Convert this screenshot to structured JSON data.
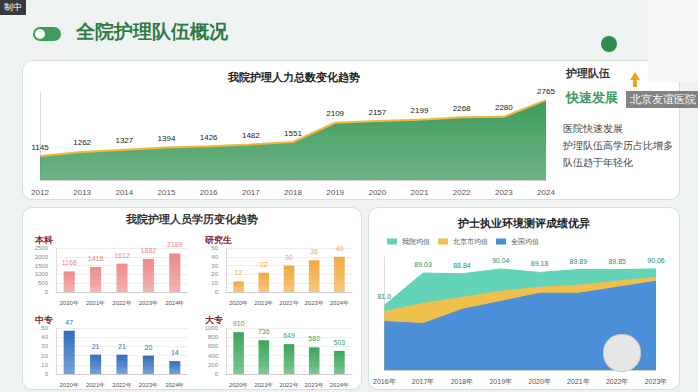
{
  "slide": {
    "title": "全院护理队伍概况",
    "recording": "制中",
    "speaker": "北京友谊医院",
    "section_title": "我院护理人员学历变化趋势",
    "highlight": {
      "heading": "护理队伍",
      "emphasis": "快速发展",
      "points": [
        "医院快速发展",
        "护理队伍高学历占比增多",
        "队伍趋于年轻化"
      ]
    }
  },
  "chart_data": [
    {
      "type": "area",
      "title": "我院护理人力总数变化趋势",
      "categories": [
        "2012",
        "2013",
        "2014",
        "2015",
        "2016",
        "2017",
        "2018",
        "2019",
        "2020",
        "2021",
        "2022",
        "2023",
        "2024"
      ],
      "values": [
        1145,
        1262,
        1327,
        1394,
        1426,
        1482,
        1551,
        2109,
        2157,
        2199,
        2268,
        2280,
        2765
      ],
      "color": "#3d9b5c",
      "ylim": [
        450,
        3000
      ],
      "data_labels": true,
      "tick_labels": "x",
      "grid": false
    },
    {
      "type": "bar",
      "title": "本科",
      "categories": [
        "2020年",
        "2021年",
        "2022年",
        "2023年",
        "2024年"
      ],
      "values": [
        1168,
        1418,
        1612,
        1882,
        2189
      ],
      "color": "#ee8a8a",
      "ylim": [
        0,
        2500
      ],
      "yticks": [
        0,
        500,
        1000,
        1500,
        2000,
        2500
      ],
      "data_labels": true,
      "grid": true
    },
    {
      "type": "bar",
      "title": "研究生",
      "categories": [
        "2020年",
        "2021年",
        "2022年",
        "2023年",
        "2024年"
      ],
      "values": [
        12,
        22,
        30,
        36,
        40
      ],
      "color": "#f2a93b",
      "ylim": [
        0,
        50
      ],
      "yticks": [
        0,
        10,
        20,
        30,
        40,
        50
      ],
      "data_labels": true,
      "grid": true
    },
    {
      "type": "bar",
      "title": "中专",
      "categories": [
        "2020年",
        "2021年",
        "2022年",
        "2023年",
        "2024年"
      ],
      "values": [
        47,
        21,
        21,
        20,
        14
      ],
      "color": "#2f6fbf",
      "ylim": [
        0,
        50
      ],
      "yticks": [
        0,
        10,
        20,
        30,
        40,
        50
      ],
      "data_labels": true,
      "grid": true
    },
    {
      "type": "bar",
      "title": "大专",
      "categories": [
        "2020年",
        "2021年",
        "2022年",
        "2023年",
        "2024年"
      ],
      "values": [
        910,
        736,
        649,
        580,
        503
      ],
      "color": "#3aa65a",
      "ylim": [
        0,
        1000
      ],
      "yticks": [
        0,
        200,
        400,
        600,
        800,
        1000
      ],
      "data_labels": true,
      "grid": true
    },
    {
      "type": "area",
      "title": "护士执业环境测评成绩优异",
      "categories": [
        "2016年",
        "2017年",
        "2018年",
        "2019年",
        "2020年",
        "2021年",
        "2022年",
        "2023年"
      ],
      "series": [
        {
          "name": "我院均值",
          "color": "#62d3b6",
          "data_labels": true,
          "values": [
            81.0,
            89.03,
            88.84,
            90.04,
            89.18,
            89.89,
            89.85,
            90.06
          ],
          "value_labels": [
            "81.0",
            "89.03",
            "88.84",
            "90.04",
            "89.18",
            "89.89",
            "89.85",
            "90.06"
          ]
        },
        {
          "name": "北京市均值",
          "color": "#efc04c",
          "values": [
            79.5,
            81.5,
            83.0,
            84.5,
            85.5,
            86.0,
            87.0,
            88.0
          ]
        },
        {
          "name": "全国均值",
          "color": "#4a8fd8",
          "values": [
            77.0,
            76.5,
            80.0,
            82.0,
            84.0,
            84.0,
            85.5,
            87.0
          ]
        }
      ],
      "ylim": [
        65,
        93
      ],
      "tick_labels": "x",
      "legend": "top-left",
      "grid": false
    }
  ]
}
